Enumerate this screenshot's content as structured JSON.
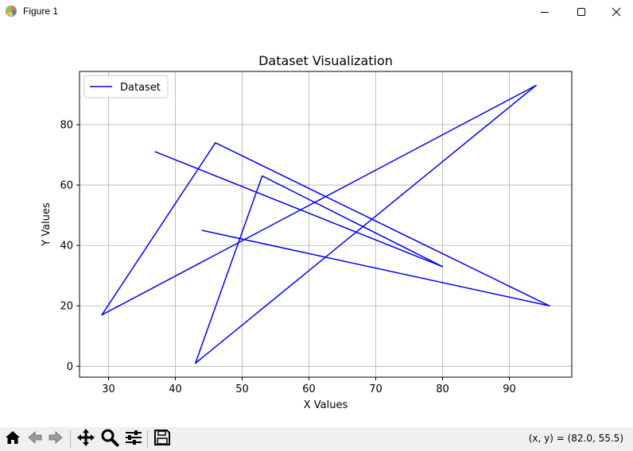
{
  "window": {
    "title": "Figure 1",
    "icon": "matplotlib-logo-icon",
    "buttons": [
      "minimize-icon",
      "maximize-icon",
      "close-icon"
    ]
  },
  "toolbar": {
    "tools": [
      "home-icon",
      "back-arrow-icon",
      "forward-arrow-icon",
      "pan-move-icon",
      "zoom-magnifier-icon",
      "configure-subplots-icon",
      "save-floppy-icon"
    ],
    "coordinates": "(x, y) = (82.0, 55.5)"
  },
  "colors": {
    "line": "#0000ff",
    "grid": "#b0b0b0",
    "toolbar_bg": "#f0f0f0"
  },
  "chart_data": {
    "type": "line",
    "title": "Dataset Visualization",
    "xlabel": "X Values",
    "ylabel": "Y Values",
    "xlim": [
      25.65,
      99.35
    ],
    "ylim": [
      -3.6,
      97.6
    ],
    "xticks": [
      30,
      40,
      50,
      60,
      70,
      80,
      90
    ],
    "yticks": [
      0,
      20,
      40,
      60,
      80
    ],
    "grid": true,
    "legend_position": "upper-left",
    "series": [
      {
        "name": "Dataset",
        "color": "#0000ff",
        "x": [
          44,
          96,
          46,
          29,
          94,
          43,
          53,
          80,
          37
        ],
        "y": [
          45,
          20,
          74,
          17,
          93,
          1,
          63,
          33,
          71
        ]
      }
    ]
  }
}
